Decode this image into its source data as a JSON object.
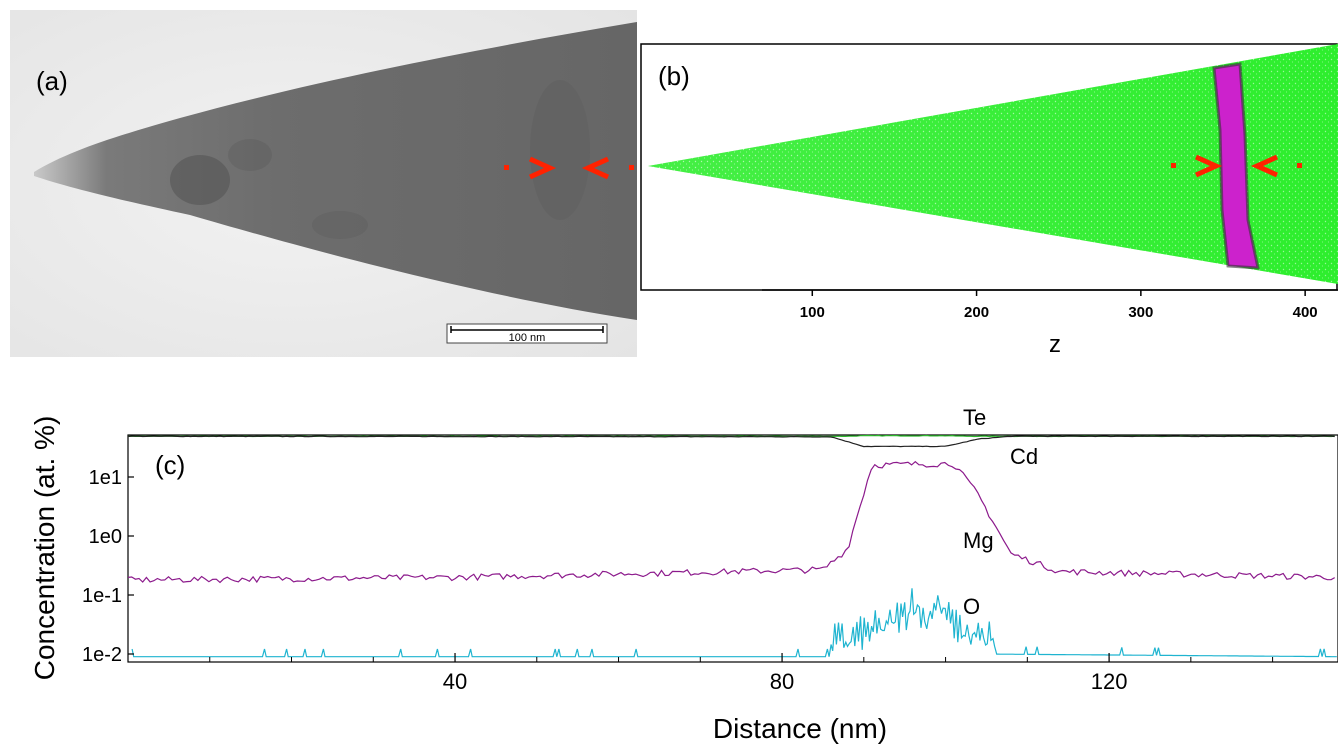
{
  "panel_a": {
    "label": "(a)",
    "scalebar_label": "100 nm"
  },
  "panel_b": {
    "label": "(b)",
    "xlabel": "z",
    "ticks": [
      "100",
      "200",
      "300",
      "400"
    ]
  },
  "panel_c": {
    "label": "(c)"
  },
  "colors": {
    "te": "#2db82d",
    "cd": "#222222",
    "mg": "#8c1a8c",
    "o": "#1fb4d0",
    "green_atoms": "#33ee33",
    "magenta_layer": "#cc22cc",
    "arrow": "#ff2200"
  },
  "chart_data": {
    "type": "line",
    "xlabel": "Distance (nm)",
    "ylabel": "Concentration (at. %)",
    "yscale": "log",
    "xlim": [
      0,
      148
    ],
    "x_ticks": [
      "40",
      "80",
      "120"
    ],
    "y_ticks": [
      "1e-2",
      "1e-1",
      "1e0",
      "1e1"
    ],
    "series": [
      {
        "name": "Te",
        "x": [
          0,
          88,
          90,
          100,
          103,
          148
        ],
        "values": [
          49,
          49,
          50,
          50,
          49,
          49
        ]
      },
      {
        "name": "Cd",
        "x": [
          0,
          86,
          90,
          100,
          104,
          108,
          148
        ],
        "values": [
          49,
          48,
          33,
          33,
          44,
          49,
          49
        ]
      },
      {
        "name": "Mg",
        "x": [
          0,
          40,
          85,
          88,
          91,
          101,
          104,
          108,
          114,
          148
        ],
        "values": [
          0.18,
          0.2,
          0.27,
          0.6,
          16,
          17,
          5,
          0.5,
          0.25,
          0.2
        ]
      },
      {
        "name": "O",
        "x": [
          0,
          88,
          92,
          95,
          96,
          97,
          99,
          101,
          104,
          148
        ],
        "values": [
          0.009,
          0.009,
          0.015,
          0.025,
          0.05,
          0.02,
          0.04,
          0.015,
          0.01,
          0.009
        ]
      }
    ]
  }
}
